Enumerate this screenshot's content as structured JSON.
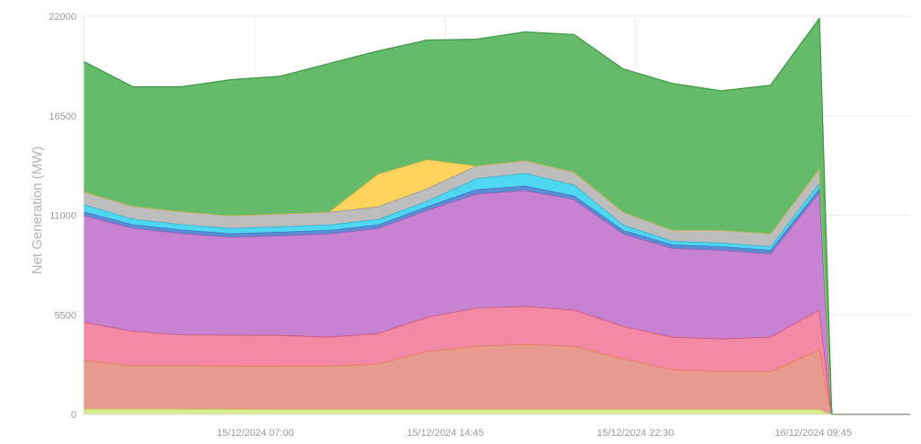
{
  "chart_data": {
    "type": "area",
    "stacked": true,
    "ylabel": "Net Generation (MW)",
    "xlabel": "",
    "ylim": [
      0,
      22000
    ],
    "yticks": [
      "0",
      "5500",
      "11000",
      "16500",
      "22000"
    ],
    "xticks": [
      {
        "t": 14,
        "label": "15/12/2024 07:00"
      },
      {
        "t": 21.75,
        "label": "15/12/2024 14:45"
      },
      {
        "t": 29.5,
        "label": "15/12/2024 22:30"
      },
      {
        "t": 36.75,
        "label": "16/12/2024 09:45"
      }
    ],
    "x_hours": [
      7,
      9,
      11,
      13,
      15,
      17,
      19,
      21,
      23,
      25,
      27,
      29,
      31,
      33,
      35,
      37,
      37.5,
      39.5,
      40.7
    ],
    "grid": true,
    "legend": "none",
    "series": [
      {
        "color": "#d8ec8c",
        "line": "#b3c95a",
        "values": [
          300,
          300,
          300,
          290,
          280,
          280,
          280,
          280,
          280,
          280,
          280,
          280,
          280,
          280,
          280,
          280,
          0,
          0,
          0
        ]
      },
      {
        "color": "#e79a8e",
        "line": "#e8743b",
        "values": [
          2700,
          2400,
          2400,
          2400,
          2400,
          2400,
          2500,
          3200,
          3500,
          3600,
          3500,
          2800,
          2200,
          2100,
          2100,
          3300,
          0,
          0,
          0
        ]
      },
      {
        "color": "#f28aa6",
        "line": "#c9466e",
        "values": [
          2100,
          1900,
          1700,
          1700,
          1700,
          1600,
          1700,
          1900,
          2100,
          2100,
          2000,
          1800,
          1800,
          1800,
          1900,
          2200,
          0,
          0,
          0
        ]
      },
      {
        "color": "#c783d2",
        "line": "#9b56a8",
        "values": [
          5900,
          5700,
          5600,
          5400,
          5500,
          5700,
          5800,
          5900,
          6300,
          6400,
          6100,
          5100,
          4900,
          4900,
          4600,
          6500,
          0,
          0,
          0
        ]
      },
      {
        "color": "#5b8cd6",
        "line": "#3e6cb8",
        "values": [
          200,
          200,
          200,
          200,
          200,
          200,
          200,
          200,
          250,
          250,
          200,
          200,
          200,
          200,
          200,
          200,
          0,
          0,
          0
        ]
      },
      {
        "color": "#4fd6f0",
        "line": "#26a9c8",
        "values": [
          400,
          300,
          300,
          300,
          300,
          300,
          300,
          300,
          600,
          700,
          600,
          300,
          200,
          200,
          200,
          300,
          0,
          0,
          0
        ]
      },
      {
        "color": "#bdbdbd",
        "line": "#8c8c8c",
        "values": [
          700,
          700,
          700,
          700,
          700,
          700,
          700,
          700,
          700,
          700,
          700,
          700,
          600,
          700,
          700,
          800,
          0,
          0,
          0
        ]
      },
      {
        "color": "#ffd35c",
        "line": "#e0b23a",
        "values": [
          0,
          0,
          0,
          0,
          0,
          0,
          1800,
          1600,
          0,
          0,
          0,
          0,
          0,
          0,
          0,
          0,
          0,
          0,
          0
        ]
      },
      {
        "color": "#66bb6a",
        "line": "#3f9a45",
        "values": [
          7200,
          6600,
          6900,
          7500,
          7600,
          8200,
          6800,
          6600,
          7000,
          7100,
          7600,
          7900,
          8100,
          7700,
          8200,
          8300,
          0,
          0,
          0
        ]
      }
    ]
  }
}
